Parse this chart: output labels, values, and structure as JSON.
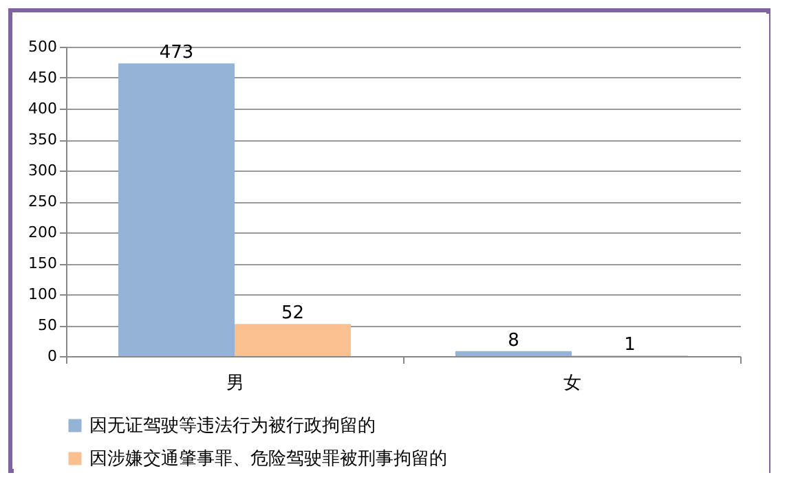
{
  "chart_data": {
    "type": "bar",
    "categories": [
      "男",
      "女"
    ],
    "series": [
      {
        "name": "因无证驾驶等违法行为被行政拘留的",
        "color": "#95b3d7",
        "values": [
          473,
          8
        ]
      },
      {
        "name": "因涉嫌交通肇事罪、危险驾驶罪被刑事拘留的",
        "color": "#fac090",
        "values": [
          52,
          1
        ]
      }
    ],
    "ylim": [
      0,
      500
    ],
    "yticks": [
      0,
      50,
      100,
      150,
      200,
      250,
      300,
      350,
      400,
      450,
      500
    ],
    "grid": "y",
    "legend": "bottom",
    "data_labels": true
  }
}
